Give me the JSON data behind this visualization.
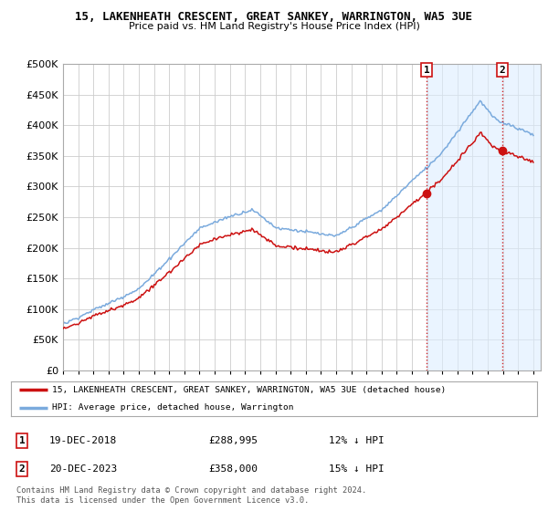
{
  "title": "15, LAKENHEATH CRESCENT, GREAT SANKEY, WARRINGTON, WA5 3UE",
  "subtitle": "Price paid vs. HM Land Registry's House Price Index (HPI)",
  "ytick_values": [
    0,
    50000,
    100000,
    150000,
    200000,
    250000,
    300000,
    350000,
    400000,
    450000,
    500000
  ],
  "ylim": [
    0,
    500000
  ],
  "xlim_start": 1995.0,
  "xlim_end": 2026.5,
  "hpi_color": "#7aaadd",
  "price_color": "#cc1111",
  "sale1_price": 288995,
  "sale1_x": 2018.97,
  "sale2_price": 358000,
  "sale2_x": 2023.97,
  "legend_line1": "15, LAKENHEATH CRESCENT, GREAT SANKEY, WARRINGTON, WA5 3UE (detached house)",
  "legend_line2": "HPI: Average price, detached house, Warrington",
  "footnote": "Contains HM Land Registry data © Crown copyright and database right 2024.\nThis data is licensed under the Open Government Licence v3.0.",
  "plot_bg": "#ffffff",
  "vline_color": "#cc1111",
  "grid_color": "#cccccc",
  "shade_color": "#ddeeff",
  "info_row1": [
    "1",
    "19-DEC-2018",
    "£288,995",
    "12% ↓ HPI"
  ],
  "info_row2": [
    "2",
    "20-DEC-2023",
    "£358,000",
    "15% ↓ HPI"
  ]
}
